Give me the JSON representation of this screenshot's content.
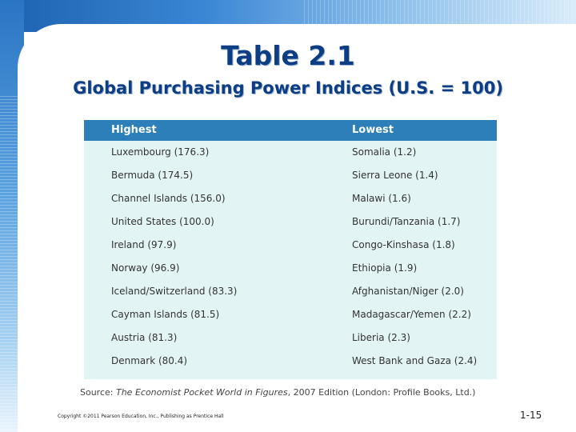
{
  "slide": {
    "title": "Table 2.1",
    "subtitle": "Global Purchasing Power Indices (U.S. = 100)",
    "copyright": "Copyright ©2011 Pearson Education, Inc., Publishing as Prentice Hall",
    "page_number": "1-15"
  },
  "table": {
    "headers": {
      "highest": "Highest",
      "lowest": "Lowest"
    },
    "rows": [
      {
        "highest": "Luxembourg (176.3)",
        "lowest": "Somalia (1.2)"
      },
      {
        "highest": "Bermuda (174.5)",
        "lowest": "Sierra Leone (1.4)"
      },
      {
        "highest": "Channel Islands (156.0)",
        "lowest": "Malawi (1.6)"
      },
      {
        "highest": "United States (100.0)",
        "lowest": "Burundi/Tanzania (1.7)"
      },
      {
        "highest": "Ireland (97.9)",
        "lowest": "Congo-Kinshasa (1.8)"
      },
      {
        "highest": "Norway (96.9)",
        "lowest": "Ethiopia (1.9)"
      },
      {
        "highest": "Iceland/Switzerland (83.3)",
        "lowest": "Afghanistan/Niger (2.0)"
      },
      {
        "highest": "Cayman Islands (81.5)",
        "lowest": "Madagascar/Yemen (2.2)"
      },
      {
        "highest": "Austria (81.3)",
        "lowest": "Liberia (2.3)"
      },
      {
        "highest": "Denmark (80.4)",
        "lowest": "West Bank and Gaza (2.4)"
      }
    ],
    "source": {
      "prefix": "Source: ",
      "title": "The Economist Pocket World in Figures",
      "suffix": ", 2007 Edition (London: Profile Books, Ltd.)"
    }
  },
  "colors": {
    "title": "#0d3d82",
    "table_header_bg": "#2c7fb8",
    "table_body_bg": "#e3f4f5"
  }
}
